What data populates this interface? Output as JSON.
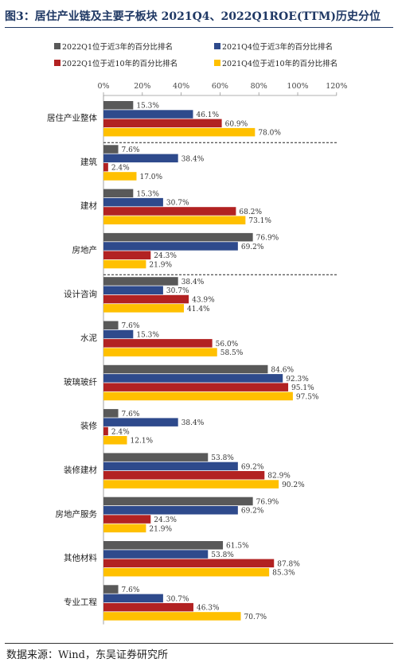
{
  "figure": {
    "title": "图3：居住产业链及主要子板块 2021Q4、2022Q1ROE(TTM)历史分位",
    "source": "数据来源：Wind，东吴证券研究所"
  },
  "chart_data": {
    "type": "bar",
    "orientation": "horizontal",
    "title": "",
    "xlabel": "",
    "ylabel": "",
    "xlim": [
      0,
      120
    ],
    "x_ticks": [
      "0%",
      "20%",
      "40%",
      "60%",
      "80%",
      "100%",
      "120%"
    ],
    "grid": false,
    "legend_position": "top",
    "categories": [
      "居住产业整体",
      "建筑",
      "建材",
      "房地产",
      "设计咨询",
      "水泥",
      "玻璃玻纤",
      "装修",
      "装修建材",
      "房地产服务",
      "其他材料",
      "专业工程"
    ],
    "series": [
      {
        "name": "2022Q1位于近3年的百分比排名",
        "color": "#595959",
        "values": [
          15.3,
          7.6,
          15.3,
          76.9,
          38.4,
          7.6,
          84.6,
          7.6,
          53.8,
          76.9,
          61.5,
          7.6
        ]
      },
      {
        "name": "2021Q4位于近3年的百分比排名",
        "color": "#2e4a8c",
        "values": [
          46.1,
          38.4,
          30.7,
          69.2,
          30.7,
          15.3,
          92.3,
          38.4,
          69.2,
          69.2,
          53.8,
          30.7
        ]
      },
      {
        "name": "2022Q1位于近10年的百分比排名",
        "color": "#b22222",
        "values": [
          60.9,
          2.4,
          68.2,
          24.3,
          43.9,
          56.0,
          95.1,
          2.4,
          82.9,
          24.3,
          87.8,
          46.3
        ]
      },
      {
        "name": "2021Q4位于近10年的百分比排名",
        "color": "#ffc000",
        "values": [
          78.0,
          17.0,
          73.1,
          21.9,
          41.4,
          58.5,
          97.5,
          12.1,
          90.2,
          21.9,
          85.3,
          70.7
        ]
      }
    ],
    "separators_after_category": [
      "居住产业整体",
      "房地产"
    ]
  }
}
